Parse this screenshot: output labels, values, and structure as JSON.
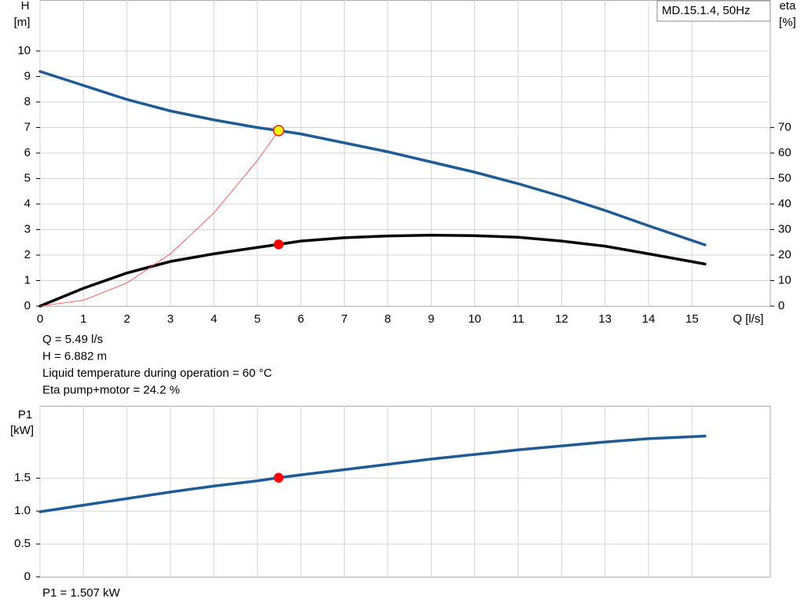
{
  "chart_data": [
    {
      "type": "line",
      "y_label": "H",
      "y_unit": "[m]",
      "y2_label": "eta",
      "y2_unit": "[%]",
      "x_label": "Q [l/s]",
      "legend": "MD.15.1.4, 50Hz",
      "xlim": [
        0,
        16.8
      ],
      "xticks": [
        0,
        1,
        2,
        3,
        4,
        5,
        6,
        7,
        8,
        9,
        10,
        11,
        12,
        13,
        14,
        15
      ],
      "ylim": [
        0,
        12
      ],
      "yticks": [
        0,
        1,
        2,
        3,
        4,
        5,
        6,
        7,
        8,
        9,
        10
      ],
      "y2lim": [
        0,
        120
      ],
      "y2ticks": [
        0,
        10,
        20,
        30,
        40,
        50,
        60,
        70
      ],
      "grid": true,
      "series": [
        {
          "color": "#1f5b94",
          "line_width": 3.5,
          "x": [
            0,
            1,
            2,
            3,
            4,
            5,
            5.49,
            6,
            7,
            8,
            9,
            10,
            11,
            12,
            13,
            14,
            15.3
          ],
          "values": [
            9.2,
            8.65,
            8.1,
            7.65,
            7.3,
            7.0,
            6.88,
            6.75,
            6.4,
            6.05,
            5.65,
            5.25,
            4.8,
            4.3,
            3.75,
            3.15,
            2.4
          ]
        },
        {
          "color": "#000000",
          "line_width": 3.5,
          "axis": "y2",
          "x": [
            0,
            1,
            2,
            3,
            4,
            5,
            5.49,
            6,
            7,
            8,
            9,
            10,
            11,
            12,
            13,
            14,
            15.3
          ],
          "values": [
            0,
            7,
            13,
            17.5,
            20.5,
            23,
            24.2,
            25.5,
            26.8,
            27.5,
            27.8,
            27.6,
            27,
            25.5,
            23.5,
            20.5,
            16.5
          ]
        },
        {
          "color": "#ff3b3b",
          "line_width": 0.8,
          "x": [
            0,
            1,
            2,
            3,
            4,
            5,
            5.49
          ],
          "values": [
            0,
            0.23,
            0.91,
            2.05,
            3.65,
            5.71,
            6.882
          ]
        }
      ],
      "markers": [
        {
          "x": 5.49,
          "value": 6.882,
          "color": "#ffff00",
          "edge": "#e02020"
        },
        {
          "x": 5.49,
          "value": 24.2,
          "axis": "y2",
          "color": "#ff0000",
          "edge": "#ff0000"
        }
      ],
      "notes": [
        "Q = 5.49 l/s",
        "H = 6.882 m",
        "Liquid temperature during operation = 60 °C",
        "Eta pump+motor = 24.2 %"
      ]
    },
    {
      "type": "line",
      "y_label": "P1",
      "y_unit": "[kW]",
      "xlim": [
        0,
        16.8
      ],
      "ylim": [
        0,
        2.6
      ],
      "yticks": [
        0,
        0.5,
        {
          "value": 1,
          "label": "1.0"
        },
        1.5
      ],
      "grid": true,
      "series": [
        {
          "color": "#1f5b94",
          "line_width": 3.5,
          "x": [
            0,
            1,
            2,
            3,
            4,
            5,
            5.49,
            6,
            7,
            8,
            9,
            10,
            11,
            12,
            13,
            14,
            15.3
          ],
          "values": [
            0.99,
            1.09,
            1.19,
            1.29,
            1.38,
            1.46,
            1.507,
            1.55,
            1.63,
            1.71,
            1.79,
            1.86,
            1.93,
            1.99,
            2.05,
            2.1,
            2.14
          ]
        }
      ],
      "markers": [
        {
          "x": 5.49,
          "value": 1.507,
          "color": "#ff0000",
          "edge": "#ff0000"
        }
      ],
      "notes": [
        "P1 = 1.507 kW"
      ]
    }
  ]
}
